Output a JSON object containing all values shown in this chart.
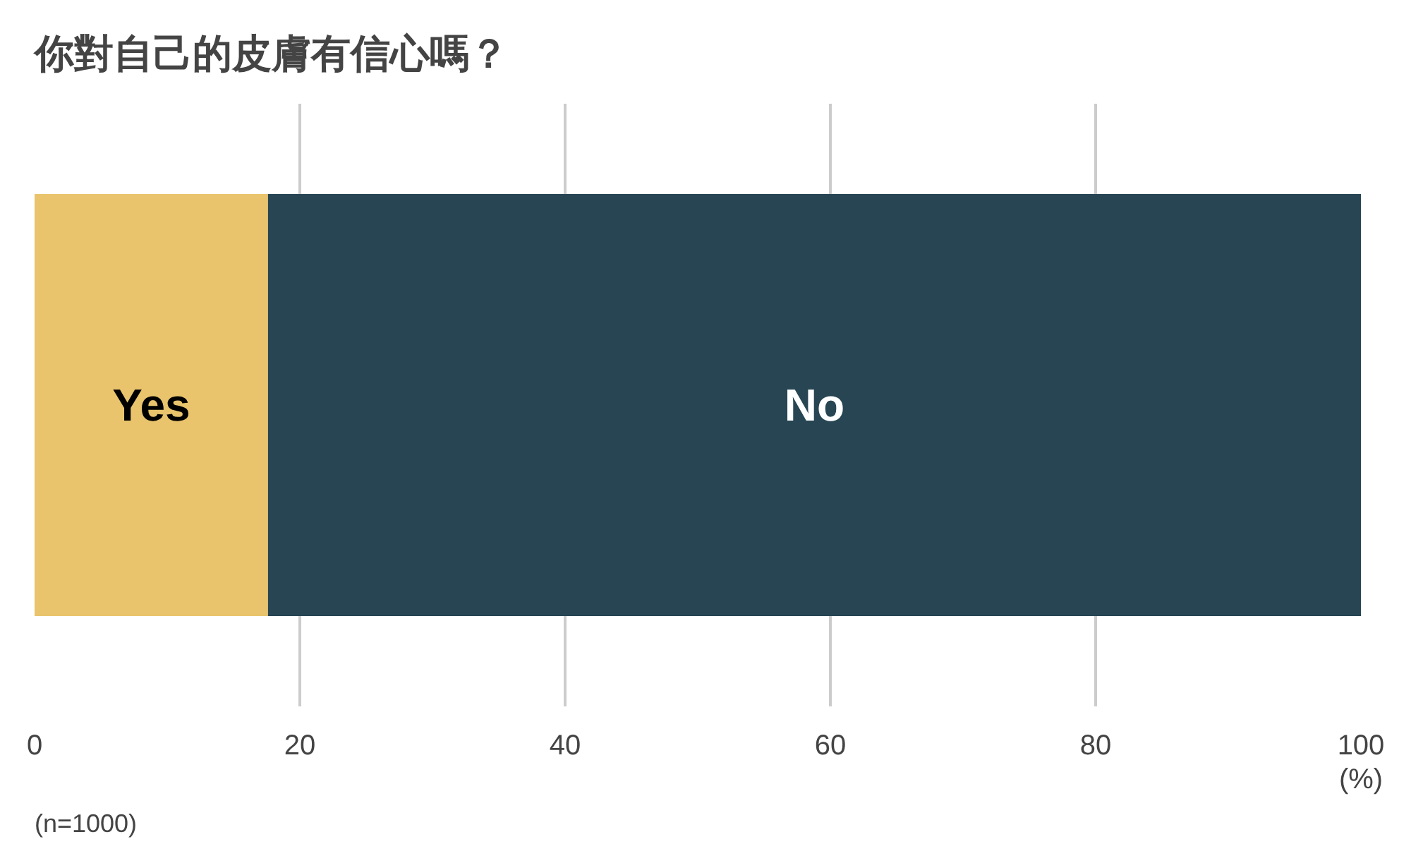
{
  "chart_data": {
    "type": "bar",
    "title": "你對自己的皮膚有信心嗎？",
    "orientation": "horizontal",
    "stacked": true,
    "categories": [
      null
    ],
    "series": [
      {
        "name": "Yes",
        "color": "#e9c46c",
        "values": [
          17.6
        ]
      },
      {
        "name": "No",
        "color": "#274553",
        "values": [
          82.4
        ]
      }
    ],
    "xlim": [
      0,
      100
    ],
    "xticks": [
      0,
      20,
      40,
      60,
      80,
      100
    ],
    "xlabel": "(%)",
    "grid": "x",
    "annotations": [
      "(n=1000)"
    ]
  }
}
